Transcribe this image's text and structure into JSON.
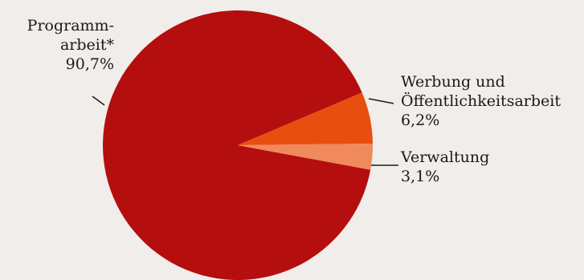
{
  "chart_data": {
    "type": "pie",
    "title": "",
    "slices": [
      {
        "label_lines": [
          "Programm-",
          "arbeit*"
        ],
        "value": 90.7,
        "value_label": "90,7%",
        "color": "#b50e0e"
      },
      {
        "label_lines": [
          "Werbung und",
          "Öffentlichkeitsarbeit"
        ],
        "value": 6.2,
        "value_label": "6,2%",
        "color": "#e84e10"
      },
      {
        "label_lines": [
          "Verwaltung"
        ],
        "value": 3.1,
        "value_label": "3,1%",
        "color": "#f08a5c"
      }
    ],
    "background": "#f0edea",
    "leader_color": "#1a1a1a"
  }
}
